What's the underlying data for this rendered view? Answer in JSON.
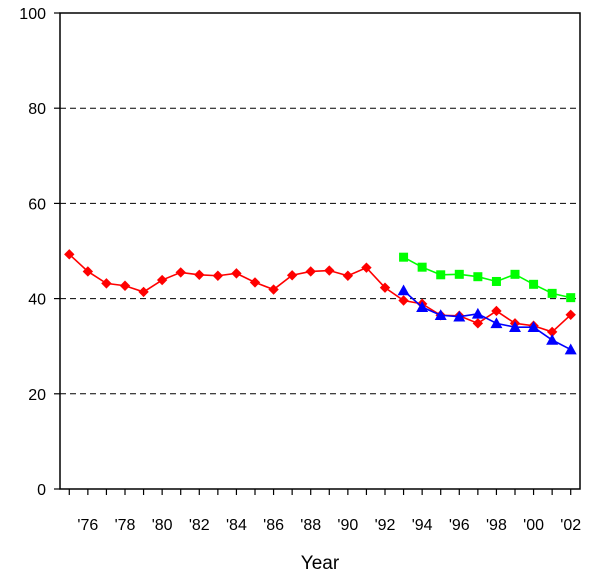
{
  "chart_data": {
    "type": "line",
    "title": "",
    "xlabel": "Year",
    "ylabel": "",
    "ylim": [
      0,
      100
    ],
    "y_ticks": [
      0,
      20,
      40,
      60,
      80,
      100
    ],
    "y_tick_labels": [
      "0",
      "20",
      "40",
      "60",
      "80",
      "100"
    ],
    "x_range": [
      1974.5,
      2002.5
    ],
    "x_ticks": [
      1976,
      1978,
      1980,
      1982,
      1984,
      1986,
      1988,
      1990,
      1992,
      1994,
      1996,
      1998,
      2000,
      2002
    ],
    "x_tick_labels": [
      "'76",
      "'78",
      "'80",
      "'82",
      "'84",
      "'86",
      "'88",
      "'90",
      "'92",
      "'94",
      "'96",
      "'98",
      "'00",
      "'02"
    ],
    "grid": "horizontal dashed",
    "series": [
      {
        "marker": "diamond",
        "color": "#ff0000",
        "x": [
          1975,
          1976,
          1977,
          1978,
          1979,
          1980,
          1981,
          1982,
          1983,
          1984,
          1985,
          1986,
          1987,
          1988,
          1989,
          1990,
          1991,
          1992,
          1993,
          1994,
          1995,
          1996,
          1997,
          1998,
          1999,
          2000,
          2001,
          2002
        ],
        "values": [
          49.3,
          45.7,
          43.2,
          42.7,
          41.4,
          43.9,
          45.5,
          45.0,
          44.8,
          45.3,
          43.4,
          41.9,
          44.9,
          45.7,
          45.9,
          44.8,
          46.5,
          42.3,
          39.6,
          38.9,
          36.5,
          36.4,
          34.8,
          37.4,
          34.8,
          34.3,
          33.0,
          36.6
        ]
      },
      {
        "marker": "square",
        "color": "#00ff00",
        "x": [
          1993,
          1994,
          1995,
          1996,
          1997,
          1998,
          1999,
          2000,
          2001,
          2002
        ],
        "values": [
          48.7,
          46.6,
          45.0,
          45.1,
          44.6,
          43.6,
          45.1,
          43.0,
          41.1,
          40.2
        ]
      },
      {
        "marker": "triangle",
        "color": "#0000ff",
        "x": [
          1993,
          1994,
          1995,
          1996,
          1997,
          1998,
          1999,
          2000,
          2001,
          2002
        ],
        "values": [
          41.7,
          38.2,
          36.5,
          36.2,
          36.8,
          34.8,
          34.0,
          34.0,
          31.3,
          29.3
        ]
      }
    ]
  }
}
